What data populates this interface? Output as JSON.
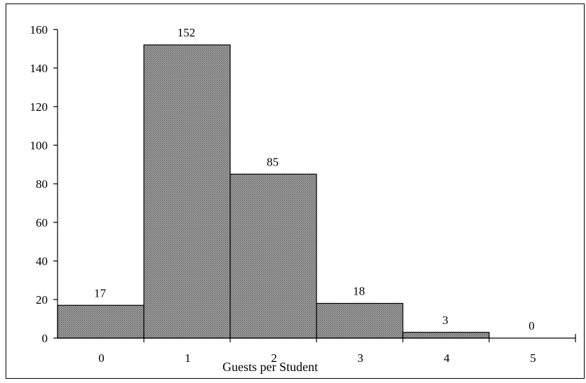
{
  "chart_data": {
    "type": "bar",
    "title": "",
    "xlabel": "Guests per Student",
    "ylabel": "",
    "categories": [
      "0",
      "1",
      "2",
      "3",
      "4",
      "5"
    ],
    "values": [
      17,
      152,
      85,
      18,
      3,
      0
    ],
    "data_labels": [
      "17",
      "152",
      "85",
      "18",
      "3",
      "0"
    ],
    "yticks": [
      "0",
      "20",
      "40",
      "60",
      "80",
      "100",
      "120",
      "140",
      "160"
    ],
    "ylim": [
      0,
      160
    ],
    "grid": false,
    "legend": "none",
    "bar_color": "#8c8c8c",
    "bar_edge_color": "#000000"
  }
}
